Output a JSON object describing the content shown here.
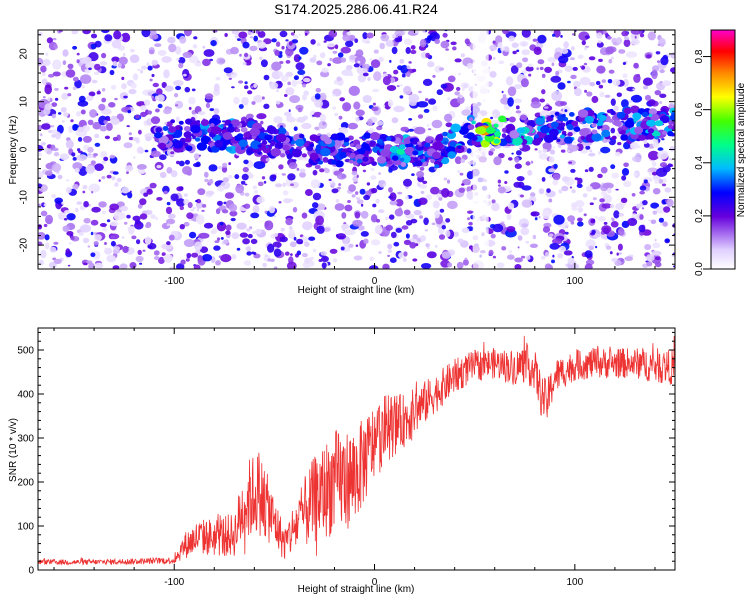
{
  "chart_data": [
    {
      "type": "heatmap",
      "title": "S174.2025.286.06.41.R24",
      "xlabel": "Height of straight line (km)",
      "ylabel": "Frequency (Hz)",
      "xlim": [
        -168,
        150
      ],
      "ylim": [
        -25,
        25
      ],
      "xticks": [
        -100,
        0,
        100
      ],
      "yticks": [
        -20,
        -10,
        0,
        10,
        20
      ],
      "colorbar": {
        "label": "Normalized spectral amplitude",
        "range": [
          0,
          0.9
        ],
        "ticks": [
          0.0,
          0.2,
          0.4,
          0.6,
          0.8
        ]
      },
      "ridge": [
        {
          "x": -110,
          "f": 3,
          "amp": 0.28
        },
        {
          "x": -75,
          "f": 3,
          "amp": 0.32
        },
        {
          "x": -53,
          "f": 2,
          "amp": 0.3
        },
        {
          "x": -30,
          "f": 0,
          "amp": 0.28
        },
        {
          "x": 0,
          "f": 0,
          "amp": 0.27
        },
        {
          "x": 12,
          "f": -0.5,
          "amp": 0.36
        },
        {
          "x": 30,
          "f": -1,
          "amp": 0.28
        },
        {
          "x": 48,
          "f": 4,
          "amp": 0.45
        },
        {
          "x": 55,
          "f": 4,
          "amp": 0.72
        },
        {
          "x": 76,
          "f": 4,
          "amp": 0.4
        },
        {
          "x": 100,
          "f": 5,
          "amp": 0.3
        },
        {
          "x": 140,
          "f": 5.5,
          "amp": 0.38
        }
      ]
    },
    {
      "type": "line",
      "xlabel": "Height of straight line (km)",
      "ylabel": "SNR (10 * v/v)",
      "xlim": [
        -168,
        150
      ],
      "ylim": [
        0,
        550
      ],
      "xticks": [
        -100,
        0,
        100
      ],
      "yticks": [
        0,
        100,
        200,
        300,
        400,
        500
      ],
      "series": [
        {
          "name": "SNR",
          "color": "#ee3333",
          "x": [
            -168,
            -140,
            -115,
            -100,
            -95,
            -88,
            -80,
            -70,
            -65,
            -58,
            -50,
            -45,
            -38,
            -30,
            -20,
            -10,
            -5,
            0,
            5,
            10,
            15,
            20,
            30,
            40,
            50,
            60,
            70,
            75,
            80,
            83,
            86,
            90,
            100,
            110,
            120,
            130,
            140,
            150
          ],
          "mean": [
            18,
            18,
            20,
            22,
            55,
            75,
            75,
            80,
            150,
            180,
            110,
            60,
            110,
            160,
            200,
            210,
            250,
            290,
            320,
            330,
            340,
            360,
            400,
            440,
            465,
            470,
            460,
            470,
            455,
            400,
            380,
            440,
            465,
            470,
            470,
            470,
            465,
            460
          ],
          "spread": [
            6,
            6,
            7,
            8,
            30,
            40,
            45,
            50,
            90,
            100,
            60,
            40,
            70,
            100,
            120,
            110,
            100,
            90,
            80,
            70,
            60,
            55,
            45,
            40,
            35,
            35,
            40,
            45,
            45,
            50,
            50,
            40,
            35,
            35,
            35,
            35,
            40,
            40
          ]
        }
      ]
    }
  ]
}
